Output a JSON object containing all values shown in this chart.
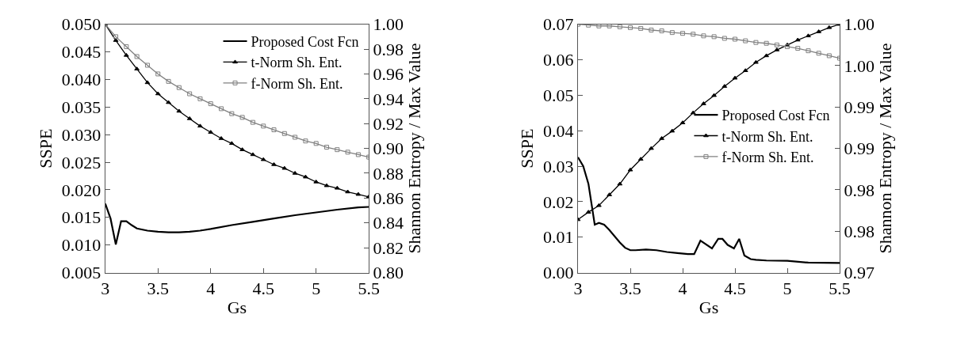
{
  "chart_data": [
    {
      "type": "line",
      "xlabel": "Gs",
      "ylabel": "SSPE",
      "y2label": "Shannon Entropy / Max Value",
      "legend": "top right",
      "xlim": [
        3,
        5.5
      ],
      "xticks": [
        3,
        3.5,
        4,
        4.5,
        5,
        5.5
      ],
      "ylim": [
        0.005,
        0.05
      ],
      "yticks": [
        {
          "value": 0.005,
          "label": "0.005"
        },
        {
          "value": 0.01,
          "label": "0.010"
        },
        {
          "value": 0.015,
          "label": "0.015"
        },
        {
          "value": 0.02,
          "label": "0.020"
        },
        {
          "value": 0.025,
          "label": "0.025"
        },
        {
          "value": 0.03,
          "label": "0.030"
        },
        {
          "value": 0.035,
          "label": "0.035"
        },
        {
          "value": 0.04,
          "label": "0.040"
        },
        {
          "value": 0.045,
          "label": "0.045"
        },
        {
          "value": 0.05,
          "label": "0.050"
        }
      ],
      "y2lim": [
        0.8,
        1.0
      ],
      "y2ticks": [
        {
          "value": 0.8,
          "label": "0.80"
        },
        {
          "value": 0.82,
          "label": "0.82"
        },
        {
          "value": 0.84,
          "label": "0.84"
        },
        {
          "value": 0.86,
          "label": "0.86"
        },
        {
          "value": 0.88,
          "label": "0.88"
        },
        {
          "value": 0.9,
          "label": "0.90"
        },
        {
          "value": 0.92,
          "label": "0.92"
        },
        {
          "value": 0.94,
          "label": "0.94"
        },
        {
          "value": 0.96,
          "label": "0.96"
        },
        {
          "value": 0.98,
          "label": "0.98"
        },
        {
          "value": 1.0,
          "label": "1.00"
        }
      ],
      "x": [
        3.0,
        3.1,
        3.2,
        3.3,
        3.4,
        3.5,
        3.6,
        3.7,
        3.8,
        3.9,
        4.0,
        4.1,
        4.2,
        4.3,
        4.4,
        4.5,
        4.6,
        4.7,
        4.8,
        4.9,
        5.0,
        5.1,
        5.2,
        5.3,
        5.4,
        5.5
      ],
      "series": [
        {
          "name": "Proposed Cost Fcn",
          "color": "#000000",
          "marker": "none",
          "x": [
            3.0,
            3.05,
            3.1,
            3.15,
            3.2,
            3.25,
            3.3,
            3.4,
            3.5,
            3.6,
            3.7,
            3.8,
            3.9,
            4.0,
            4.2,
            4.4,
            4.6,
            4.8,
            5.0,
            5.2,
            5.4,
            5.5
          ],
          "values": [
            0.0175,
            0.0148,
            0.0101,
            0.0143,
            0.0143,
            0.0136,
            0.013,
            0.0126,
            0.0124,
            0.0123,
            0.0123,
            0.0124,
            0.0126,
            0.0129,
            0.0136,
            0.0142,
            0.0148,
            0.0154,
            0.0159,
            0.0164,
            0.0168,
            0.0169
          ]
        },
        {
          "name": "t-Norm Sh. Ent.",
          "color": "#000000",
          "marker": "triangle",
          "axis": "y2",
          "values": [
            1.0,
            0.987,
            0.975,
            0.964,
            0.953,
            0.944,
            0.937,
            0.93,
            0.924,
            0.918,
            0.913,
            0.908,
            0.904,
            0.899,
            0.895,
            0.891,
            0.887,
            0.884,
            0.88,
            0.877,
            0.873,
            0.87,
            0.868,
            0.865,
            0.863,
            0.861
          ]
        },
        {
          "name": "f-Norm Sh. Ent.",
          "color": "#808080",
          "marker": "square",
          "axis": "y2",
          "values": [
            1.0,
            0.99,
            0.982,
            0.974,
            0.967,
            0.96,
            0.954,
            0.949,
            0.944,
            0.94,
            0.936,
            0.932,
            0.928,
            0.925,
            0.921,
            0.918,
            0.915,
            0.912,
            0.909,
            0.906,
            0.904,
            0.901,
            0.899,
            0.897,
            0.895,
            0.893
          ]
        }
      ]
    },
    {
      "type": "line",
      "xlabel": "Gs",
      "ylabel": "SSPE",
      "y2label": "Shannon Entropy / Max Value",
      "legend": "right",
      "xlim": [
        3,
        5.5
      ],
      "xticks": [
        3,
        3.5,
        4,
        4.5,
        5,
        5.5
      ],
      "ylim": [
        0,
        0.07
      ],
      "yticks": [
        {
          "value": 0,
          "label": "0.00"
        },
        {
          "value": 0.01,
          "label": "0.01"
        },
        {
          "value": 0.02,
          "label": "0.02"
        },
        {
          "value": 0.03,
          "label": "0.03"
        },
        {
          "value": 0.04,
          "label": "0.04"
        },
        {
          "value": 0.05,
          "label": "0.05"
        },
        {
          "value": 0.06,
          "label": "0.06"
        },
        {
          "value": 0.07,
          "label": "0.07"
        }
      ],
      "y2lim": [
        0.97,
        1.0
      ],
      "y2ticks": [
        {
          "value": 0.97,
          "label": "0.97"
        },
        {
          "value": 0.975,
          "label": "0.98"
        },
        {
          "value": 0.98,
          "label": "0.98"
        },
        {
          "value": 0.985,
          "label": "0.99"
        },
        {
          "value": 0.99,
          "label": "0.99"
        },
        {
          "value": 0.995,
          "label": "1.00"
        },
        {
          "value": 1.0,
          "label": "1.00"
        }
      ],
      "x": [
        3.0,
        3.1,
        3.2,
        3.3,
        3.4,
        3.5,
        3.6,
        3.7,
        3.8,
        3.9,
        4.0,
        4.1,
        4.2,
        4.3,
        4.4,
        4.5,
        4.6,
        4.7,
        4.8,
        4.9,
        5.0,
        5.1,
        5.2,
        5.3,
        5.4,
        5.5
      ],
      "series": [
        {
          "name": "Proposed Cost Fcn",
          "color": "#000000",
          "marker": "none",
          "x": [
            3.0,
            3.05,
            3.1,
            3.16,
            3.2,
            3.25,
            3.3,
            3.4,
            3.45,
            3.5,
            3.55,
            3.65,
            3.75,
            3.85,
            3.95,
            4.05,
            4.11,
            4.17,
            4.28,
            4.34,
            4.38,
            4.43,
            4.49,
            4.54,
            4.59,
            4.65,
            4.7,
            4.8,
            5.0,
            5.2,
            5.5
          ],
          "values": [
            0.0325,
            0.03,
            0.025,
            0.0135,
            0.014,
            0.0135,
            0.012,
            0.0085,
            0.007,
            0.0063,
            0.0063,
            0.0065,
            0.0063,
            0.0058,
            0.0055,
            0.0052,
            0.0052,
            0.009,
            0.0068,
            0.0095,
            0.0095,
            0.0078,
            0.0068,
            0.0095,
            0.0048,
            0.0038,
            0.0036,
            0.0034,
            0.0033,
            0.0028,
            0.0027
          ]
        },
        {
          "name": "t-Norm Sh. Ent.",
          "color": "#000000",
          "marker": "triangle",
          "axis": "y2",
          "values": [
            0.9764,
            0.9773,
            0.9781,
            0.9794,
            0.9807,
            0.9824,
            0.9837,
            0.985,
            0.9862,
            0.9871,
            0.9881,
            0.9893,
            0.9904,
            0.9914,
            0.9925,
            0.9935,
            0.9944,
            0.9954,
            0.9962,
            0.9969,
            0.9975,
            0.9981,
            0.9986,
            0.9991,
            0.9996,
            1.0
          ]
        },
        {
          "name": "f-Norm Sh. Ent.",
          "color": "#808080",
          "marker": "square",
          "axis": "y2",
          "values": [
            1.0,
            0.9999,
            0.9998,
            0.9998,
            0.9997,
            0.9996,
            0.9995,
            0.9993,
            0.9992,
            0.999,
            0.9989,
            0.9988,
            0.9986,
            0.9985,
            0.9983,
            0.9982,
            0.998,
            0.9978,
            0.9977,
            0.9975,
            0.9973,
            0.9971,
            0.9968,
            0.9965,
            0.9962,
            0.9959
          ]
        }
      ]
    }
  ]
}
